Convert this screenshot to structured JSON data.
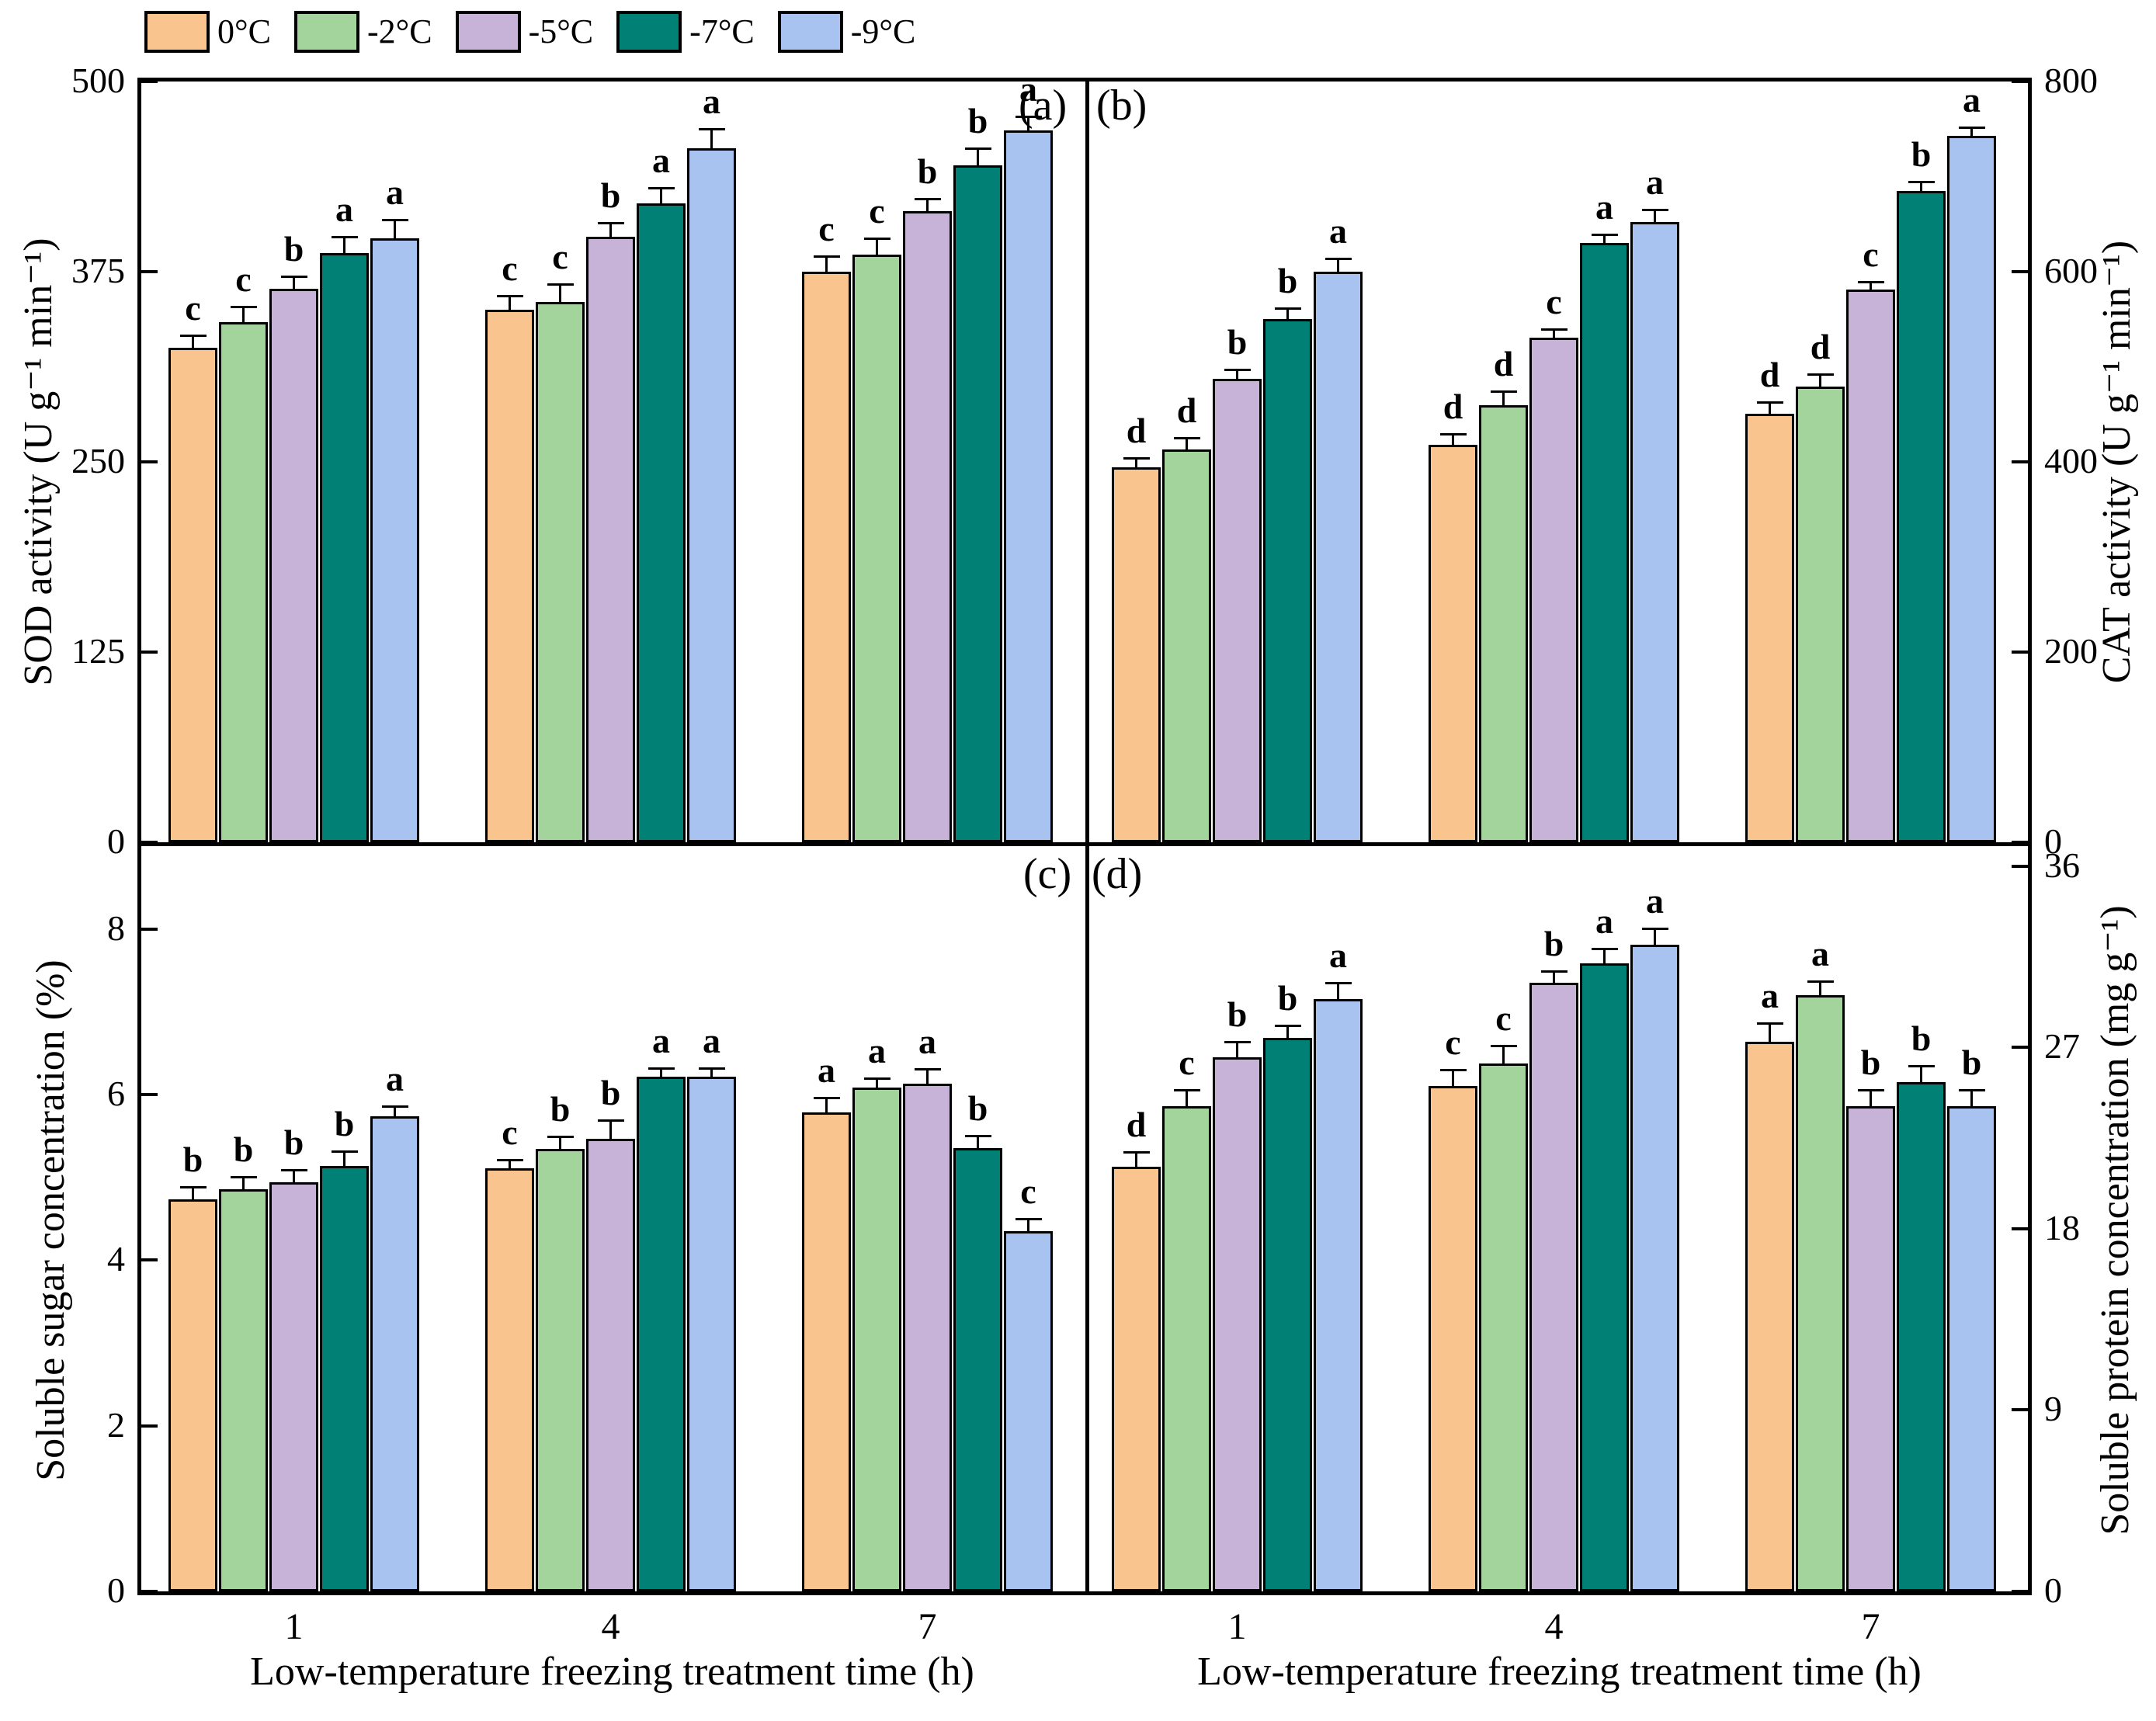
{
  "legend": {
    "items": [
      {
        "label": "0°C",
        "color": "#F9C48E"
      },
      {
        "label": "-2°C",
        "color": "#A2D49B"
      },
      {
        "label": "-5°C",
        "color": "#C8B3D8"
      },
      {
        "label": "-7°C",
        "color": "#018076"
      },
      {
        "label": "-9°C",
        "color": "#A8C3F0"
      }
    ]
  },
  "x_axis": {
    "title": "Low-temperature freezing treatment time (h)",
    "categories": [
      "1",
      "4",
      "7"
    ]
  },
  "chart_data": [
    {
      "id": "a",
      "type": "bar",
      "panel_label": "(a)",
      "ylabel": "SOD activity (U g⁻¹ min⁻¹)",
      "ylim": [
        0,
        500
      ],
      "frame_max": 500,
      "yticks": [
        0,
        125,
        250,
        375,
        500
      ],
      "axis_side": "left",
      "legend_position": "top-left-outside",
      "grid": false,
      "categories": [
        "1",
        "4",
        "7"
      ],
      "series": [
        {
          "name": "0°C",
          "values": [
            325,
            350,
            375
          ],
          "errors": [
            8,
            9,
            10
          ],
          "letters": [
            "c",
            "c",
            "c"
          ]
        },
        {
          "name": "-2°C",
          "values": [
            342,
            355,
            386
          ],
          "errors": [
            10,
            12,
            11
          ],
          "letters": [
            "c",
            "c",
            "c"
          ]
        },
        {
          "name": "-5°C",
          "values": [
            364,
            398,
            415
          ],
          "errors": [
            8,
            9,
            8
          ],
          "letters": [
            "b",
            "b",
            "b"
          ]
        },
        {
          "name": "-7°C",
          "values": [
            387,
            420,
            445
          ],
          "errors": [
            11,
            10,
            11
          ],
          "letters": [
            "a",
            "a",
            "b"
          ]
        },
        {
          "name": "-9°C",
          "values": [
            397,
            456,
            468
          ],
          "errors": [
            12,
            13,
            9
          ],
          "letters": [
            "a",
            "a",
            "a"
          ]
        }
      ]
    },
    {
      "id": "b",
      "type": "bar",
      "panel_label": "(b)",
      "ylabel": "CAT activity (U g⁻¹ min⁻¹)",
      "ylim": [
        0,
        800
      ],
      "frame_max": 800,
      "yticks": [
        0,
        200,
        400,
        600,
        800
      ],
      "axis_side": "right",
      "grid": false,
      "categories": [
        "1",
        "4",
        "7"
      ],
      "series": [
        {
          "name": "0°C",
          "values": [
            394,
            418,
            451
          ],
          "errors": [
            10,
            11,
            12
          ],
          "letters": [
            "d",
            "d",
            "d"
          ]
        },
        {
          "name": "-2°C",
          "values": [
            413,
            460,
            479
          ],
          "errors": [
            12,
            14,
            13
          ],
          "letters": [
            "d",
            "d",
            "d"
          ]
        },
        {
          "name": "-5°C",
          "values": [
            487,
            531,
            581
          ],
          "errors": [
            10,
            9,
            8
          ],
          "letters": [
            "b",
            "c",
            "c"
          ]
        },
        {
          "name": "-7°C",
          "values": [
            550,
            630,
            685
          ],
          "errors": [
            12,
            9,
            10
          ],
          "letters": [
            "b",
            "a",
            "b"
          ]
        },
        {
          "name": "-9°C",
          "values": [
            600,
            652,
            743
          ],
          "errors": [
            14,
            13,
            9
          ],
          "letters": [
            "a",
            "a",
            "a"
          ]
        }
      ]
    },
    {
      "id": "c",
      "type": "bar",
      "panel_label": "(c)",
      "ylabel": "Soluble sugar concentration (%)",
      "ylim": [
        0,
        9
      ],
      "frame_max": 9,
      "yticks": [
        0,
        2,
        4,
        6,
        8
      ],
      "axis_side": "left",
      "grid": false,
      "categories": [
        "1",
        "4",
        "7"
      ],
      "series": [
        {
          "name": "0°C",
          "values": [
            4.73,
            5.11,
            5.78
          ],
          "errors": [
            0.15,
            0.1,
            0.18
          ],
          "letters": [
            "b",
            "c",
            "a"
          ]
        },
        {
          "name": "-2°C",
          "values": [
            4.86,
            5.34,
            6.08
          ],
          "errors": [
            0.15,
            0.15,
            0.12
          ],
          "letters": [
            "b",
            "b",
            "a"
          ]
        },
        {
          "name": "-5°C",
          "values": [
            4.94,
            5.47,
            6.13
          ],
          "errors": [
            0.15,
            0.22,
            0.18
          ],
          "letters": [
            "b",
            "b",
            "a"
          ]
        },
        {
          "name": "-7°C",
          "values": [
            5.14,
            6.22,
            5.35
          ],
          "errors": [
            0.18,
            0.1,
            0.15
          ],
          "letters": [
            "b",
            "a",
            "b"
          ]
        },
        {
          "name": "-9°C",
          "values": [
            5.74,
            6.22,
            4.35
          ],
          "errors": [
            0.12,
            0.1,
            0.15
          ],
          "letters": [
            "a",
            "a",
            "c"
          ]
        }
      ]
    },
    {
      "id": "d",
      "type": "bar",
      "panel_label": "(d)",
      "ylabel": "Soluble protein concentration (mg g⁻¹)",
      "ylim": [
        0,
        37
      ],
      "frame_max": 37,
      "yticks": [
        0,
        9,
        18,
        27,
        36
      ],
      "axis_side": "right",
      "grid": false,
      "categories": [
        "1",
        "4",
        "7"
      ],
      "series": [
        {
          "name": "0°C",
          "values": [
            21.1,
            25.1,
            27.3
          ],
          "errors": [
            0.7,
            0.8,
            0.9
          ],
          "letters": [
            "d",
            "c",
            "a"
          ]
        },
        {
          "name": "-2°C",
          "values": [
            24.1,
            26.2,
            29.6
          ],
          "errors": [
            0.8,
            0.9,
            0.7
          ],
          "letters": [
            "c",
            "c",
            "a"
          ]
        },
        {
          "name": "-5°C",
          "values": [
            26.5,
            30.2,
            24.1
          ],
          "errors": [
            0.8,
            0.6,
            0.8
          ],
          "letters": [
            "b",
            "b",
            "b"
          ]
        },
        {
          "name": "-7°C",
          "values": [
            27.5,
            31.2,
            25.3
          ],
          "errors": [
            0.6,
            0.7,
            0.8
          ],
          "letters": [
            "b",
            "a",
            "b"
          ]
        },
        {
          "name": "-9°C",
          "values": [
            29.4,
            32.1,
            24.1
          ],
          "errors": [
            0.8,
            0.8,
            0.8
          ],
          "letters": [
            "a",
            "a",
            "b"
          ]
        }
      ]
    }
  ]
}
